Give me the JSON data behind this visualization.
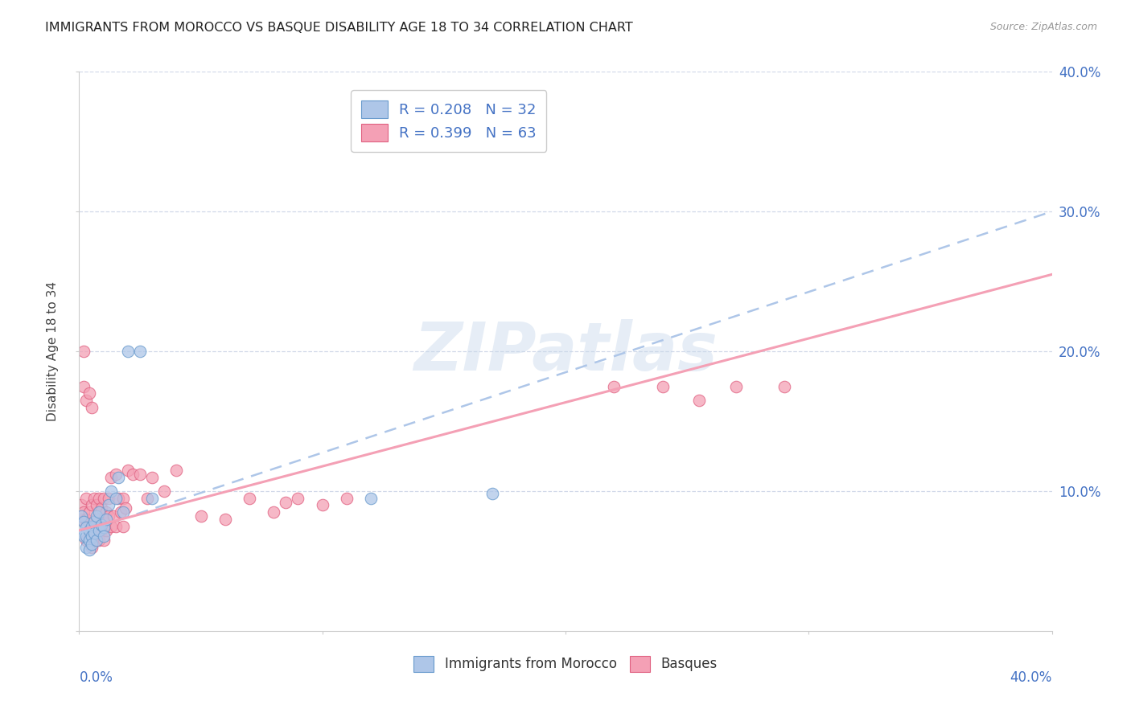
{
  "title": "IMMIGRANTS FROM MOROCCO VS BASQUE DISABILITY AGE 18 TO 34 CORRELATION CHART",
  "source": "Source: ZipAtlas.com",
  "ylabel": "Disability Age 18 to 34",
  "xlim": [
    0.0,
    0.4
  ],
  "ylim": [
    0.0,
    0.4
  ],
  "xticks": [
    0.0,
    0.1,
    0.2,
    0.3,
    0.4
  ],
  "yticks": [
    0.0,
    0.1,
    0.2,
    0.3,
    0.4
  ],
  "x_edge_labels": [
    "0.0%",
    "40.0%"
  ],
  "y_right_labels": [
    "",
    "10.0%",
    "20.0%",
    "30.0%",
    "40.0%"
  ],
  "watermark_text": "ZIPatlas",
  "legend_r_color": "#4472c4",
  "series_morocco": {
    "face_color": "#aec6e8",
    "edge_color": "#6699cc",
    "x": [
      0.001,
      0.002,
      0.002,
      0.003,
      0.003,
      0.003,
      0.004,
      0.004,
      0.004,
      0.005,
      0.005,
      0.005,
      0.006,
      0.006,
      0.007,
      0.007,
      0.008,
      0.008,
      0.009,
      0.01,
      0.01,
      0.011,
      0.012,
      0.013,
      0.015,
      0.016,
      0.018,
      0.02,
      0.025,
      0.03,
      0.12,
      0.17
    ],
    "y": [
      0.082,
      0.078,
      0.068,
      0.074,
      0.068,
      0.06,
      0.072,
      0.065,
      0.058,
      0.075,
      0.068,
      0.062,
      0.078,
      0.07,
      0.082,
      0.065,
      0.085,
      0.072,
      0.076,
      0.074,
      0.068,
      0.08,
      0.09,
      0.1,
      0.095,
      0.11,
      0.085,
      0.2,
      0.2,
      0.095,
      0.095,
      0.098
    ]
  },
  "series_basque": {
    "face_color": "#f4a0b5",
    "edge_color": "#e06080",
    "x": [
      0.001,
      0.001,
      0.002,
      0.002,
      0.002,
      0.003,
      0.003,
      0.003,
      0.003,
      0.004,
      0.004,
      0.004,
      0.005,
      0.005,
      0.005,
      0.006,
      0.006,
      0.006,
      0.007,
      0.007,
      0.007,
      0.008,
      0.008,
      0.008,
      0.009,
      0.009,
      0.01,
      0.01,
      0.01,
      0.011,
      0.011,
      0.012,
      0.012,
      0.013,
      0.013,
      0.014,
      0.015,
      0.015,
      0.016,
      0.017,
      0.018,
      0.018,
      0.019,
      0.02,
      0.022,
      0.025,
      0.028,
      0.03,
      0.035,
      0.04,
      0.05,
      0.06,
      0.07,
      0.08,
      0.085,
      0.09,
      0.1,
      0.11,
      0.22,
      0.24,
      0.255,
      0.27,
      0.29
    ],
    "y": [
      0.09,
      0.08,
      0.2,
      0.175,
      0.085,
      0.165,
      0.095,
      0.08,
      0.065,
      0.17,
      0.085,
      0.07,
      0.16,
      0.09,
      0.06,
      0.095,
      0.075,
      0.065,
      0.09,
      0.08,
      0.065,
      0.095,
      0.075,
      0.065,
      0.088,
      0.072,
      0.095,
      0.08,
      0.065,
      0.085,
      0.072,
      0.095,
      0.082,
      0.11,
      0.075,
      0.082,
      0.112,
      0.075,
      0.095,
      0.085,
      0.095,
      0.075,
      0.088,
      0.115,
      0.112,
      0.112,
      0.095,
      0.11,
      0.1,
      0.115,
      0.082,
      0.08,
      0.095,
      0.085,
      0.092,
      0.095,
      0.09,
      0.095,
      0.175,
      0.175,
      0.165,
      0.175,
      0.175
    ]
  },
  "line_morocco": {
    "color": "#aec6e8",
    "linestyle": "--",
    "x0": 0.0,
    "y0": 0.07,
    "x1": 0.4,
    "y1": 0.3
  },
  "line_basque": {
    "color": "#f4a0b5",
    "linestyle": "-",
    "x0": 0.0,
    "y0": 0.072,
    "x1": 0.4,
    "y1": 0.255
  },
  "grid_color": "#d0d8e8",
  "background_color": "#ffffff",
  "title_color": "#222222",
  "title_fontsize": 11.5,
  "source_color": "#999999",
  "tick_color": "#4472c4",
  "ylabel_color": "#444444",
  "marker_size": 110,
  "marker_alpha": 0.75,
  "marker_linewidth": 0.8
}
